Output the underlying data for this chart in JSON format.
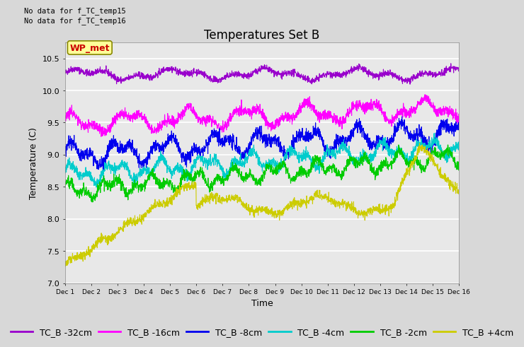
{
  "title": "Temperatures Set B",
  "xlabel": "Time",
  "ylabel": "Temperature (C)",
  "ylim": [
    7.0,
    10.75
  ],
  "yticks": [
    7.0,
    7.5,
    8.0,
    8.5,
    9.0,
    9.5,
    10.0,
    10.5
  ],
  "xtick_labels": [
    "Dec 1",
    "Dec 2",
    "Dec 3",
    "Dec 4",
    "Dec 5",
    "Dec 6",
    "Dec 7",
    "Dec 8",
    "Dec 9",
    "Dec 10",
    "Dec 11",
    "Dec 12",
    "Dec 13",
    "Dec 14",
    "Dec 15",
    "Dec 16"
  ],
  "n_points": 2000,
  "series": [
    {
      "label": "TC_B -32cm",
      "color": "#9900cc"
    },
    {
      "label": "TC_B -16cm",
      "color": "#ff00ff"
    },
    {
      "label": "TC_B -8cm",
      "color": "#0000ee"
    },
    {
      "label": "TC_B -4cm",
      "color": "#00cccc"
    },
    {
      "label": "TC_B -2cm",
      "color": "#00cc00"
    },
    {
      "label": "TC_B +4cm",
      "color": "#cccc00"
    }
  ],
  "header_texts": [
    "No data for f_TC_temp15",
    "No data for f_TC_temp16"
  ],
  "wp_met_label": "WP_met",
  "wp_met_color": "#cc0000",
  "wp_met_bg": "#ffff99",
  "background_color": "#d8d8d8",
  "plot_bg_color": "#e8e8e8",
  "grid_color": "white",
  "title_fontsize": 12,
  "axis_fontsize": 9,
  "tick_fontsize": 8,
  "legend_fontsize": 9
}
